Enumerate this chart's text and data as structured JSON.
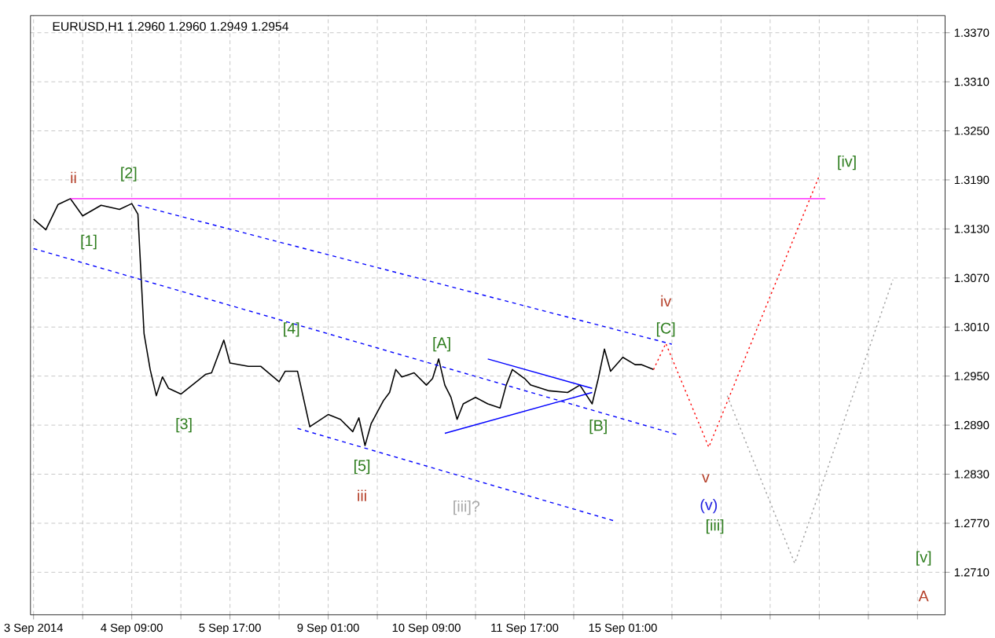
{
  "chart_data": {
    "type": "line",
    "title": "EURUSD,H1  1.2960 1.2960 1.2949 1.2954",
    "categories": [
      "3 Sep 2014",
      null,
      null,
      null,
      null,
      null,
      null,
      null,
      null,
      null,
      null,
      null,
      null,
      null,
      null,
      null,
      "4 Sep 09:00",
      null,
      null,
      null,
      null,
      null,
      null,
      null,
      null,
      null,
      null,
      null,
      null,
      null,
      null,
      null,
      "5 Sep 17:00",
      null,
      null,
      null,
      null,
      null,
      null,
      null,
      null,
      null,
      null,
      null,
      null,
      null,
      null,
      null,
      "9 Sep 01:00",
      null,
      null,
      null,
      null,
      null,
      null,
      null,
      null,
      null,
      null,
      null,
      null,
      null,
      null,
      null,
      "10 Sep 09:00",
      null,
      null,
      null,
      null,
      null,
      null,
      null,
      null,
      null,
      null,
      null,
      null,
      null,
      null,
      null,
      "11 Sep 17:00",
      null,
      null,
      null,
      null,
      null,
      null,
      null,
      null,
      null,
      null,
      null,
      null,
      null,
      null,
      null,
      "15 Sep 01:00",
      null,
      null,
      null,
      null,
      null,
      null,
      null,
      null,
      null,
      null,
      null,
      null,
      null,
      null,
      null,
      null,
      null,
      null,
      null,
      null,
      null,
      null,
      null,
      null,
      null,
      null,
      null,
      null,
      null,
      null,
      null,
      null,
      null,
      null,
      null,
      null,
      null,
      null,
      null,
      null,
      null,
      null,
      null,
      null,
      null,
      null,
      null,
      null,
      null,
      null,
      null,
      null
    ],
    "ylim": [
      1.2658,
      1.3391
    ],
    "yticks": [
      {
        "value": 1.271,
        "label": "1.2710"
      },
      {
        "value": 1.277,
        "label": "1.2770"
      },
      {
        "value": 1.283,
        "label": "1.2830"
      },
      {
        "value": 1.289,
        "label": "1.2890"
      },
      {
        "value": 1.295,
        "label": "1.2950"
      },
      {
        "value": 1.301,
        "label": "1.3010"
      },
      {
        "value": 1.307,
        "label": "1.3070"
      },
      {
        "value": 1.313,
        "label": "1.3130"
      },
      {
        "value": 1.319,
        "label": "1.3190"
      },
      {
        "value": 1.325,
        "label": "1.3250"
      },
      {
        "value": 1.331,
        "label": "1.3310"
      },
      {
        "value": 1.337,
        "label": "1.3370"
      }
    ],
    "grid": true,
    "series": [
      {
        "color": "#000000",
        "line_style": "solid",
        "values": [
          1.3142,
          null,
          1.3129,
          null,
          1.316,
          null,
          1.3167,
          null,
          1.3146,
          null,
          null,
          1.3159,
          null,
          null,
          1.3154,
          null,
          1.3161,
          1.3148,
          1.3002,
          1.2958,
          1.2926,
          1.2949,
          1.2935,
          null,
          1.2928,
          null,
          null,
          null,
          1.2952,
          1.2954,
          null,
          1.2994,
          1.2966,
          null,
          null,
          1.2962,
          null,
          1.2962,
          null,
          null,
          1.2943,
          1.2956,
          null,
          1.2956,
          null,
          1.2888,
          null,
          null,
          1.2903,
          null,
          1.2897,
          null,
          1.2882,
          1.2899,
          1.2865,
          1.2892,
          null,
          1.292,
          1.293,
          1.2958,
          1.2949,
          null,
          1.2954,
          null,
          1.2939,
          1.2947,
          1.2971,
          1.2939,
          1.2924,
          1.2897,
          1.2916,
          null,
          1.2924,
          1.292,
          1.2916,
          null,
          1.2911,
          1.2939,
          1.2958,
          null,
          1.2947,
          1.2939,
          null,
          null,
          1.2932,
          null,
          null,
          1.293,
          null,
          1.2939,
          null,
          1.2916,
          1.2947,
          1.2983,
          1.2956,
          null,
          1.2973,
          null,
          1.2964,
          1.2964,
          null,
          1.2958,
          null,
          null,
          null,
          null,
          null,
          null,
          null,
          null,
          null,
          null,
          null,
          null,
          null,
          null,
          null,
          null,
          null,
          null,
          null,
          null,
          null,
          null,
          null,
          null,
          null,
          null,
          null,
          null,
          null,
          null,
          null,
          null,
          null,
          null,
          null,
          null,
          null,
          null,
          null,
          null,
          null,
          null,
          null,
          null,
          null,
          null,
          null
        ]
      },
      {
        "color": "#ff0000",
        "line_style": "dotted",
        "values": [
          null,
          null,
          null,
          null,
          null,
          null,
          null,
          null,
          null,
          null,
          null,
          null,
          null,
          null,
          null,
          null,
          null,
          null,
          null,
          null,
          null,
          null,
          null,
          null,
          null,
          null,
          null,
          null,
          null,
          null,
          null,
          null,
          null,
          null,
          null,
          null,
          null,
          null,
          null,
          null,
          null,
          null,
          null,
          null,
          null,
          null,
          null,
          null,
          null,
          null,
          null,
          null,
          null,
          null,
          null,
          null,
          null,
          null,
          null,
          null,
          null,
          null,
          null,
          null,
          null,
          null,
          null,
          null,
          null,
          null,
          null,
          null,
          null,
          null,
          null,
          null,
          null,
          null,
          null,
          null,
          null,
          null,
          null,
          null,
          null,
          null,
          null,
          null,
          null,
          null,
          null,
          null,
          null,
          null,
          null,
          null,
          null,
          null,
          null,
          null,
          null,
          1.2958,
          null,
          1.299,
          null,
          null,
          null,
          null,
          null,
          null,
          1.2863,
          null,
          null,
          null,
          null,
          null,
          null,
          null,
          null,
          null,
          null,
          null,
          null,
          null,
          null,
          null,
          null,
          null,
          1.3195,
          null,
          null,
          null,
          null,
          null,
          null,
          null,
          null,
          null,
          null,
          null,
          null,
          null,
          null,
          null,
          null,
          null,
          null,
          null,
          null
        ]
      },
      {
        "color": "#a0a0a0",
        "line_style": "dotted",
        "values": [
          null,
          null,
          null,
          null,
          null,
          null,
          null,
          null,
          null,
          null,
          null,
          null,
          null,
          null,
          null,
          null,
          null,
          null,
          null,
          null,
          null,
          null,
          null,
          null,
          null,
          null,
          null,
          null,
          null,
          null,
          null,
          null,
          null,
          null,
          null,
          null,
          null,
          null,
          null,
          null,
          null,
          null,
          null,
          null,
          null,
          null,
          null,
          null,
          null,
          null,
          null,
          null,
          null,
          null,
          null,
          null,
          null,
          null,
          null,
          null,
          null,
          null,
          null,
          null,
          null,
          null,
          null,
          null,
          null,
          null,
          null,
          null,
          null,
          null,
          null,
          null,
          null,
          null,
          null,
          null,
          null,
          null,
          null,
          null,
          null,
          null,
          null,
          null,
          null,
          null,
          null,
          null,
          null,
          null,
          null,
          null,
          null,
          null,
          null,
          null,
          null,
          null,
          null,
          null,
          null,
          null,
          null,
          null,
          null,
          null,
          null,
          null,
          null,
          1.2926,
          null,
          null,
          null,
          null,
          null,
          null,
          null,
          null,
          null,
          null,
          1.2721,
          null,
          null,
          null,
          null,
          null,
          null,
          null,
          null,
          null,
          null,
          null,
          null,
          null,
          null,
          null,
          1.3068,
          null,
          null,
          null,
          null,
          null,
          null,
          null,
          null
        ]
      },
      {
        "color": "#0000ff",
        "line_style": "dashed",
        "values": [
          null,
          null,
          null,
          null,
          null,
          null,
          null,
          null,
          null,
          null,
          null,
          null,
          null,
          null,
          null,
          null,
          null,
          1.3159,
          null,
          null,
          null,
          null,
          null,
          null,
          null,
          null,
          null,
          null,
          null,
          null,
          null,
          null,
          null,
          null,
          null,
          null,
          null,
          null,
          null,
          null,
          null,
          null,
          null,
          null,
          null,
          null,
          null,
          null,
          null,
          null,
          null,
          null,
          null,
          null,
          null,
          null,
          null,
          null,
          null,
          null,
          null,
          null,
          null,
          null,
          null,
          null,
          null,
          null,
          null,
          null,
          null,
          null,
          null,
          null,
          null,
          null,
          null,
          null,
          null,
          null,
          null,
          null,
          null,
          null,
          null,
          null,
          null,
          null,
          null,
          null,
          null,
          null,
          null,
          null,
          null,
          null,
          null,
          null,
          null,
          null,
          null,
          null,
          null,
          null,
          1.2989,
          null,
          null,
          null,
          null,
          null,
          null,
          null,
          null,
          null,
          null,
          null,
          null,
          null,
          null,
          null,
          null,
          null,
          null,
          null,
          null,
          null,
          null,
          null,
          null,
          null,
          null,
          null,
          null,
          null,
          null,
          null,
          null,
          null,
          null,
          null,
          null,
          null,
          null,
          null,
          null,
          null,
          null,
          null,
          null
        ]
      },
      {
        "color": "#0000ff",
        "line_style": "dashed",
        "values": [
          1.3106,
          null,
          null,
          null,
          null,
          null,
          null,
          null,
          null,
          null,
          null,
          null,
          null,
          null,
          null,
          null,
          null,
          null,
          null,
          null,
          null,
          null,
          null,
          null,
          null,
          null,
          null,
          null,
          null,
          null,
          null,
          null,
          null,
          null,
          null,
          null,
          null,
          null,
          null,
          null,
          null,
          null,
          null,
          null,
          null,
          null,
          null,
          null,
          null,
          null,
          null,
          null,
          null,
          null,
          null,
          null,
          null,
          null,
          null,
          null,
          null,
          null,
          null,
          null,
          null,
          null,
          null,
          null,
          null,
          null,
          null,
          null,
          null,
          null,
          null,
          null,
          null,
          null,
          null,
          null,
          null,
          null,
          null,
          null,
          null,
          null,
          null,
          null,
          null,
          null,
          null,
          null,
          null,
          null,
          null,
          null,
          null,
          null,
          null,
          null,
          null,
          null,
          null,
          null,
          null,
          1.2878,
          null,
          null,
          null,
          null,
          null,
          null,
          null,
          null,
          null,
          null,
          null,
          null,
          null,
          null,
          null,
          null,
          null,
          null,
          null,
          null,
          null,
          null,
          null,
          null,
          null,
          null,
          null,
          null,
          null,
          null,
          null,
          null,
          null,
          null,
          null,
          null,
          null,
          null,
          null,
          null,
          null,
          null,
          null
        ]
      },
      {
        "color": "#0000ff",
        "line_style": "dashed",
        "values": [
          null,
          null,
          null,
          null,
          null,
          null,
          null,
          null,
          null,
          null,
          null,
          null,
          null,
          null,
          null,
          null,
          null,
          null,
          null,
          null,
          null,
          null,
          null,
          null,
          null,
          null,
          null,
          null,
          null,
          null,
          null,
          null,
          null,
          null,
          null,
          null,
          null,
          null,
          null,
          null,
          null,
          null,
          null,
          1.2886,
          null,
          null,
          null,
          null,
          null,
          null,
          null,
          null,
          null,
          null,
          null,
          null,
          null,
          null,
          null,
          null,
          null,
          null,
          null,
          null,
          null,
          null,
          null,
          null,
          null,
          null,
          null,
          null,
          null,
          null,
          null,
          null,
          null,
          null,
          null,
          null,
          null,
          null,
          null,
          null,
          null,
          null,
          null,
          null,
          null,
          null,
          null,
          null,
          null,
          null,
          null,
          1.2772,
          null,
          null,
          null,
          null,
          null,
          null,
          null,
          null,
          null,
          null,
          null,
          null,
          null,
          null,
          null,
          null,
          null,
          null,
          null,
          null,
          null,
          null,
          null,
          null,
          null,
          null,
          null,
          null,
          null,
          null,
          null,
          null,
          null,
          null,
          null,
          null,
          null,
          null,
          null,
          null,
          null,
          null,
          null,
          null,
          null,
          null,
          null,
          null,
          null,
          null,
          null,
          null,
          null
        ]
      },
      {
        "color": "#0000ff",
        "line_style": "solid",
        "values": [
          null,
          null,
          null,
          null,
          null,
          null,
          null,
          null,
          null,
          null,
          null,
          null,
          null,
          null,
          null,
          null,
          null,
          null,
          null,
          null,
          null,
          null,
          null,
          null,
          null,
          null,
          null,
          null,
          null,
          null,
          null,
          null,
          null,
          null,
          null,
          null,
          null,
          null,
          null,
          null,
          null,
          null,
          null,
          null,
          null,
          null,
          null,
          null,
          null,
          null,
          null,
          null,
          null,
          null,
          null,
          null,
          null,
          null,
          null,
          null,
          null,
          null,
          null,
          null,
          null,
          null,
          null,
          null,
          null,
          null,
          null,
          null,
          null,
          null,
          1.2971,
          null,
          null,
          null,
          null,
          null,
          null,
          null,
          null,
          null,
          null,
          null,
          null,
          null,
          null,
          null,
          null,
          1.2935,
          null,
          null,
          null,
          null,
          null,
          null,
          null,
          null,
          null,
          null,
          null,
          null,
          null,
          null,
          null,
          null,
          null,
          null,
          null,
          null,
          null,
          null,
          null,
          null,
          null,
          null,
          null,
          null,
          null,
          null,
          null,
          null,
          null,
          null,
          null,
          null,
          null,
          null,
          null,
          null,
          null,
          null,
          null,
          null,
          null,
          null,
          null,
          null,
          null,
          null,
          null,
          null,
          null,
          null,
          null,
          null,
          null
        ]
      },
      {
        "color": "#0000ff",
        "line_style": "solid",
        "values": [
          null,
          null,
          null,
          null,
          null,
          null,
          null,
          null,
          null,
          null,
          null,
          null,
          null,
          null,
          null,
          null,
          null,
          null,
          null,
          null,
          null,
          null,
          null,
          null,
          null,
          null,
          null,
          null,
          null,
          null,
          null,
          null,
          null,
          null,
          null,
          null,
          null,
          null,
          null,
          null,
          null,
          null,
          null,
          null,
          null,
          null,
          null,
          null,
          null,
          null,
          null,
          null,
          null,
          null,
          null,
          null,
          null,
          null,
          null,
          null,
          null,
          null,
          null,
          null,
          null,
          null,
          null,
          1.288,
          null,
          null,
          null,
          null,
          null,
          null,
          null,
          null,
          null,
          null,
          null,
          null,
          null,
          null,
          null,
          null,
          null,
          null,
          null,
          null,
          null,
          null,
          null,
          1.293,
          null,
          null,
          null,
          null,
          null,
          null,
          null,
          null,
          null,
          null,
          null,
          null,
          null,
          null,
          null,
          null,
          null,
          null,
          null,
          null,
          null,
          null,
          null,
          null,
          null,
          null,
          null,
          null,
          null,
          null,
          null,
          null,
          null,
          null,
          null,
          null,
          null,
          null,
          null,
          null,
          null,
          null,
          null,
          null,
          null,
          null,
          null,
          null,
          null,
          null,
          null,
          null,
          null,
          null,
          null,
          null,
          null
        ]
      },
      {
        "color": "#ff00ff",
        "line_style": "solid",
        "values": [
          null,
          null,
          null,
          null,
          null,
          null,
          1.3167,
          null,
          null,
          null,
          null,
          null,
          null,
          null,
          null,
          null,
          null,
          null,
          null,
          null,
          null,
          null,
          null,
          null,
          null,
          null,
          null,
          null,
          null,
          null,
          null,
          null,
          null,
          null,
          null,
          null,
          null,
          null,
          null,
          null,
          null,
          null,
          null,
          null,
          null,
          null,
          null,
          null,
          null,
          null,
          null,
          null,
          null,
          null,
          null,
          null,
          null,
          null,
          null,
          null,
          null,
          null,
          null,
          null,
          null,
          null,
          null,
          null,
          null,
          null,
          null,
          null,
          null,
          null,
          null,
          null,
          null,
          null,
          null,
          null,
          null,
          null,
          null,
          null,
          null,
          null,
          null,
          null,
          null,
          null,
          null,
          null,
          null,
          null,
          null,
          null,
          null,
          null,
          null,
          null,
          null,
          null,
          null,
          null,
          null,
          null,
          null,
          null,
          null,
          null,
          null,
          null,
          null,
          null,
          null,
          null,
          null,
          null,
          null,
          null,
          null,
          null,
          null,
          null,
          null,
          null,
          null,
          null,
          null,
          1.3167,
          null,
          null,
          null,
          null,
          null,
          null,
          null,
          null,
          null,
          null,
          null,
          null,
          null,
          null,
          null,
          null,
          null,
          null,
          null
        ]
      }
    ],
    "annotations": [
      "ii",
      "[2]",
      "[1]",
      "[3]",
      "[4]",
      "[5]",
      "iii",
      "[iii]?",
      "[A]",
      "[B]",
      "[C]",
      "iv",
      "v",
      "(v)",
      "[iii]",
      "[iv]",
      "[v]",
      "A"
    ]
  }
}
